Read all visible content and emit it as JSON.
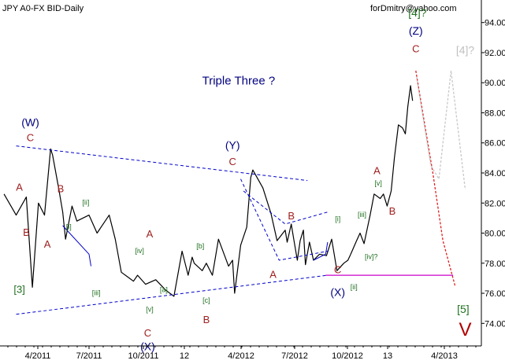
{
  "header": {
    "title": "JPY A0-FX BID-Daily",
    "credit": "forDmitry@yahoo.com"
  },
  "chart_data": {
    "type": "line",
    "title": "JPY A0-FX BID-Daily",
    "ylim": [
      72.5,
      95.5
    ],
    "y_ticks": [
      74,
      76,
      78,
      80,
      82,
      84,
      86,
      88,
      90,
      92,
      94
    ],
    "y_tick_labels": [
      "74.00",
      "76.00",
      "78.00",
      "80.00",
      "82.00",
      "84.00",
      "86.00",
      "88.00",
      "90.00",
      "92.00",
      "94.00"
    ],
    "x_ticks": [
      "4/2011",
      "7/2011",
      "10/2011",
      "12",
      "4/2012",
      "7/2012",
      "10/2012",
      "13",
      "4/2013"
    ],
    "grid": false,
    "legend": "none",
    "series": [
      {
        "style": "price",
        "color": "#000000",
        "x": [
          0,
          3,
          5.5,
          7,
          8.5,
          10,
          11.5,
          12,
          13.5,
          14.5,
          15.2,
          16.8,
          18,
          21,
          23,
          26,
          27.5,
          29,
          31,
          32,
          33,
          35,
          37.5,
          40,
          42,
          44,
          45.5,
          46.5,
          47,
          49,
          50,
          51.5,
          53,
          55.5,
          56.5,
          57,
          58.5,
          60,
          61,
          61.5,
          64,
          66,
          67.5,
          69.5,
          70,
          71,
          71.5,
          72.5,
          73.2,
          74,
          74.5,
          75.5,
          76.5,
          78,
          79.7,
          81,
          82.3,
          84,
          85,
          85.7
        ],
        "y": [
          82.6,
          81.2,
          82.4,
          76.4,
          82.0,
          81.2,
          85.6,
          85.2,
          83.0,
          81.4,
          79.6,
          81.8,
          80.8,
          81.2,
          80.0,
          81.2,
          79.6,
          77.4,
          77.0,
          76.8,
          77.2,
          76.6,
          76.9,
          76.2,
          75.8,
          78.8,
          77.2,
          78.4,
          78.0,
          77.5,
          78.0,
          77.2,
          79.6,
          77.8,
          78.2,
          76.0,
          79.2,
          80.4,
          83.7,
          84.2,
          83.0,
          81.3,
          79.5,
          80.2,
          79.4,
          80.6,
          79.8,
          78.2,
          79.5,
          80.2,
          77.9,
          79.4,
          78.2,
          78.6,
          78.5,
          79.6,
          77.5,
          78.0,
          78.2,
          78.6
        ]
      },
      {
        "style": "price",
        "color": "#000000",
        "x": [
          85.7,
          87,
          88,
          89,
          90.5,
          91.5,
          93,
          93.8,
          94.7,
          95.7,
          96.5,
          97.5,
          98.5,
          99.2,
          99.8,
          100.5,
          101
        ],
        "y": [
          78.6,
          79.4,
          80.0,
          79.3,
          81.2,
          82.6,
          82.3,
          82.6,
          81.8,
          82.8,
          85.0,
          87.2,
          87.0,
          86.6,
          88.4,
          89.8,
          88.8
        ]
      },
      {
        "style": "forecast",
        "color": "#e02020",
        "x": [
          101.8,
          103.5,
          106,
          108.5,
          111.5
        ],
        "y": [
          90.8,
          88.0,
          84.0,
          79.5,
          76.5
        ]
      },
      {
        "style": "forecast",
        "color": "#c8c8c8",
        "x": [
          102,
          105.5,
          107.5,
          110.5,
          114
        ],
        "y": [
          90.4,
          84.5,
          83.6,
          90.8,
          82.9
        ]
      },
      {
        "style": "trendline",
        "color": "#0000cc",
        "x": [
          3,
          75
        ],
        "y": [
          85.8,
          83.5
        ]
      },
      {
        "style": "trendline",
        "color": "#0000cc",
        "x": [
          3,
          80
        ],
        "y": [
          74.6,
          77.2
        ]
      },
      {
        "style": "channel",
        "color": "#0000cc",
        "x": [
          58.5,
          68,
          80
        ],
        "y": [
          83.6,
          78.2,
          78.8
        ]
      },
      {
        "style": "channel",
        "color": "#0000cc",
        "x": [
          59.2,
          69.5,
          80
        ],
        "y": [
          82.8,
          80.6,
          81.4
        ]
      },
      {
        "style": "solidline",
        "color": "#0000cc",
        "x": [
          14.5,
          21,
          21.5
        ],
        "y": [
          80.5,
          78.6,
          77.8
        ]
      },
      {
        "style": "solidline",
        "color": "#0000cc",
        "x": [
          76.5,
          79.5,
          80
        ],
        "y": [
          78.2,
          78.6,
          79.4
        ]
      },
      {
        "style": "hline",
        "color": "#cc00cc",
        "x": [
          79.5,
          111
        ],
        "y": [
          77.2,
          77.2
        ]
      }
    ],
    "annotations": [
      {
        "text": "(W)",
        "x": 6.5,
        "y": 87.3,
        "color": "#000080",
        "size": 14
      },
      {
        "text": "C",
        "x": 6.5,
        "y": 86.3,
        "color": "#a02020",
        "size": 13
      },
      {
        "text": "A",
        "x": 3.8,
        "y": 83.0,
        "color": "#a02020",
        "size": 13
      },
      {
        "text": "B",
        "x": 5.5,
        "y": 80.0,
        "color": "#a02020",
        "size": 13
      },
      {
        "text": "[3]",
        "x": 3.8,
        "y": 76.2,
        "color": "#207020",
        "size": 13
      },
      {
        "text": "B",
        "x": 14.0,
        "y": 82.9,
        "color": "#a02020",
        "size": 13
      },
      {
        "text": "A",
        "x": 10.7,
        "y": 79.2,
        "color": "#a02020",
        "size": 13
      },
      {
        "text": "[i]",
        "x": 16.0,
        "y": 80.4,
        "color": "#207020",
        "size": 9
      },
      {
        "text": "[ii]",
        "x": 20.2,
        "y": 82.0,
        "color": "#207020",
        "size": 9
      },
      {
        "text": "[iii]",
        "x": 22.8,
        "y": 76.0,
        "color": "#207020",
        "size": 9
      },
      {
        "text": "[iv]",
        "x": 33.5,
        "y": 78.8,
        "color": "#207020",
        "size": 9
      },
      {
        "text": "[v]",
        "x": 36.0,
        "y": 74.9,
        "color": "#207020",
        "size": 9
      },
      {
        "text": "A",
        "x": 36.0,
        "y": 79.9,
        "color": "#a02020",
        "size": 13
      },
      {
        "text": "[a]",
        "x": 39.5,
        "y": 76.2,
        "color": "#207020",
        "size": 9
      },
      {
        "text": "[b]",
        "x": 48.5,
        "y": 79.1,
        "color": "#207020",
        "size": 9
      },
      {
        "text": "[c]",
        "x": 50.0,
        "y": 75.5,
        "color": "#207020",
        "size": 9
      },
      {
        "text": "B",
        "x": 50.0,
        "y": 74.2,
        "color": "#a02020",
        "size": 13
      },
      {
        "text": "C",
        "x": 35.5,
        "y": 73.3,
        "color": "#a02020",
        "size": 13
      },
      {
        "text": "(X)",
        "x": 35.5,
        "y": 72.4,
        "color": "#000080",
        "size": 14
      },
      {
        "text": "(Y)",
        "x": 56.5,
        "y": 85.8,
        "color": "#000080",
        "size": 14
      },
      {
        "text": "C",
        "x": 56.5,
        "y": 84.7,
        "color": "#a02020",
        "size": 13
      },
      {
        "text": "B",
        "x": 71.0,
        "y": 81.1,
        "color": "#a02020",
        "size": 13
      },
      {
        "text": "A",
        "x": 66.5,
        "y": 77.2,
        "color": "#a02020",
        "size": 13
      },
      {
        "text": "[i]",
        "x": 82.5,
        "y": 80.9,
        "color": "#207020",
        "size": 9
      },
      {
        "text": "[ii]",
        "x": 86.5,
        "y": 76.4,
        "color": "#207020",
        "size": 9
      },
      {
        "text": "C",
        "x": 82.5,
        "y": 77.5,
        "color": "#a02020",
        "size": 13
      },
      {
        "text": "(X)",
        "x": 82.5,
        "y": 76.0,
        "color": "#000080",
        "size": 14
      },
      {
        "text": "[iii]",
        "x": 88.5,
        "y": 81.2,
        "color": "#207020",
        "size": 9
      },
      {
        "text": "[iv]?",
        "x": 90.8,
        "y": 78.4,
        "color": "#207020",
        "size": 9
      },
      {
        "text": "[v]",
        "x": 92.5,
        "y": 83.3,
        "color": "#207020",
        "size": 9
      },
      {
        "text": "A",
        "x": 92.2,
        "y": 84.1,
        "color": "#a02020",
        "size": 13
      },
      {
        "text": "B",
        "x": 96.0,
        "y": 81.4,
        "color": "#a02020",
        "size": 13
      },
      {
        "text": "[4]?",
        "x": 102.2,
        "y": 94.6,
        "color": "#207020",
        "size": 14
      },
      {
        "text": "(Z)",
        "x": 101.8,
        "y": 93.4,
        "color": "#000080",
        "size": 14
      },
      {
        "text": "C",
        "x": 101.8,
        "y": 92.2,
        "color": "#a02020",
        "size": 13
      },
      {
        "text": "[4]?",
        "x": 114.0,
        "y": 92.1,
        "color": "#c0c0c0",
        "size": 14
      },
      {
        "text": "[5]",
        "x": 113.5,
        "y": 74.9,
        "color": "#207020",
        "size": 14
      },
      {
        "text": "V",
        "x": 114.0,
        "y": 73.5,
        "color": "#b00000",
        "size": 24
      },
      {
        "text": "Triple Three ?",
        "x": 58.0,
        "y": 90.1,
        "color": "#000080",
        "size": 15
      }
    ]
  }
}
